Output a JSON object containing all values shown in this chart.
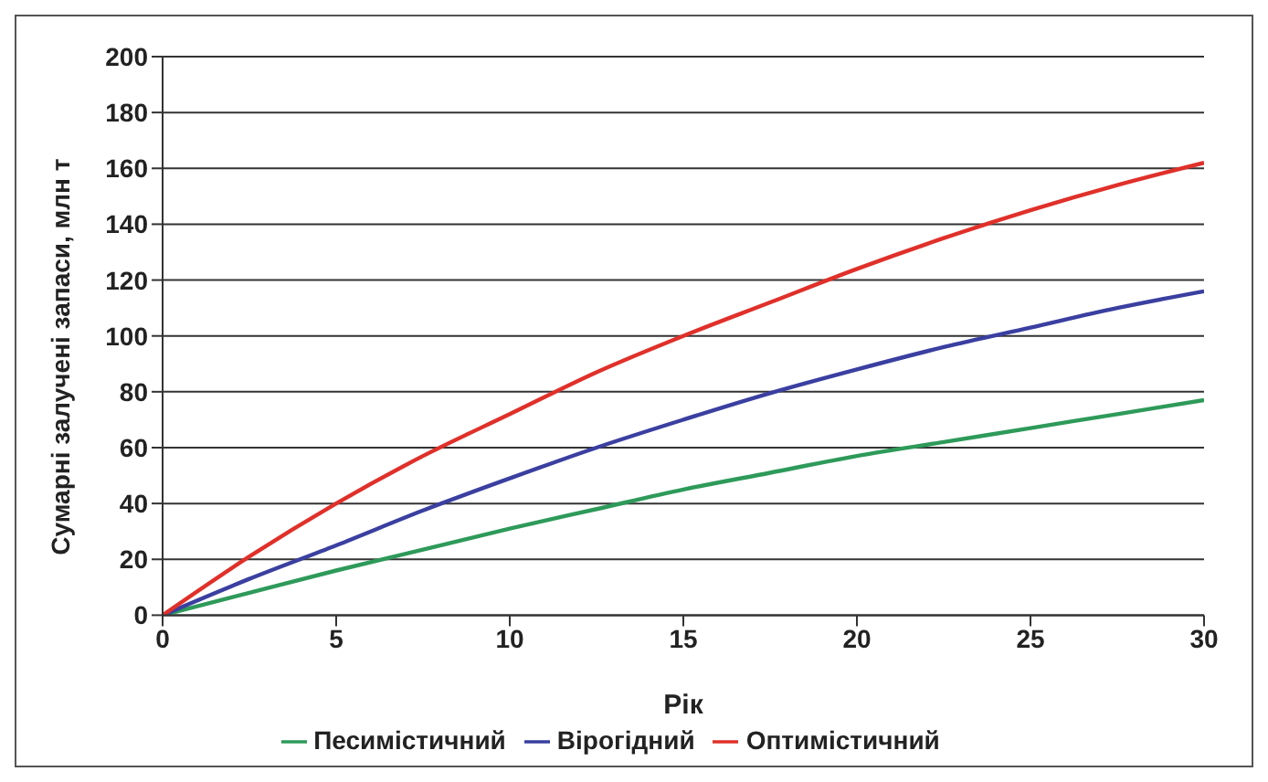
{
  "chart_data": {
    "type": "line",
    "xlabel": "Рік",
    "ylabel": "Сумарні залучені запаси, млн т",
    "x": [
      0,
      2.5,
      5,
      7.5,
      10,
      12.5,
      15,
      17.5,
      20,
      22.5,
      25,
      27.5,
      30
    ],
    "series": [
      {
        "name": "Песимістичний",
        "color": "#2e9a5a",
        "values": [
          0,
          8,
          16,
          23.5,
          31,
          38,
          45,
          51,
          57,
          62,
          67,
          72,
          77
        ]
      },
      {
        "name": "Вірогідний",
        "color": "#3a3fa0",
        "values": [
          0,
          13,
          25,
          37.5,
          49,
          60,
          70,
          79.5,
          88,
          96,
          103,
          110,
          116
        ]
      },
      {
        "name": "Оптимістичний",
        "color": "#e0302a",
        "values": [
          0,
          21,
          40,
          57,
          72,
          87,
          100,
          112,
          124,
          135,
          145,
          154,
          162
        ]
      }
    ],
    "xlim": [
      0,
      30
    ],
    "xticks": [
      0,
      5,
      10,
      15,
      20,
      25,
      30
    ],
    "ylim": [
      0,
      200
    ],
    "yticks": [
      0,
      20,
      40,
      60,
      80,
      100,
      120,
      140,
      160,
      180,
      200
    ],
    "grid": "y",
    "legend": "bottom",
    "marker": "none",
    "line_style": "solid"
  }
}
